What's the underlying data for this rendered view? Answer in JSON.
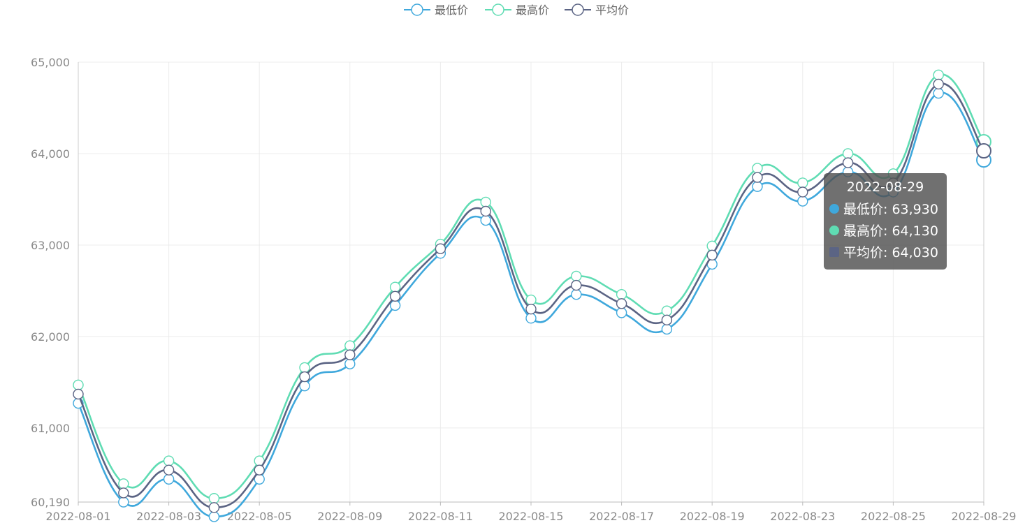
{
  "chart_data": {
    "type": "line",
    "smooth": true,
    "grid": true,
    "legend_position": "top-center",
    "x": [
      "2022-08-01",
      "2022-08-02",
      "2022-08-03",
      "2022-08-04",
      "2022-08-05",
      "2022-08-06",
      "2022-08-09",
      "2022-08-10",
      "2022-08-11",
      "2022-08-12",
      "2022-08-15",
      "2022-08-16",
      "2022-08-17",
      "2022-08-18",
      "2022-08-19",
      "2022-08-22",
      "2022-08-23",
      "2022-08-24",
      "2022-08-25",
      "2022-08-26",
      "2022-08-29"
    ],
    "x_tick_labels": [
      "2022-08-01",
      "2022-08-03",
      "2022-08-05",
      "2022-08-09",
      "2022-08-11",
      "2022-08-15",
      "2022-08-17",
      "2022-08-19",
      "2022-08-23",
      "2022-08-25",
      "2022-08-29"
    ],
    "y_tick_labels": [
      "60,190",
      "61,000",
      "62,000",
      "63,000",
      "64,000",
      "65,000"
    ],
    "y_ticks": [
      60190,
      61000,
      62000,
      63000,
      64000,
      65000
    ],
    "ylim": [
      60190,
      65000
    ],
    "series": [
      {
        "name": "最低价",
        "color": "#3fa8dc",
        "values": [
          61270,
          60190,
          60440,
          60030,
          60440,
          61460,
          61700,
          62340,
          62910,
          63270,
          62200,
          62460,
          62260,
          62080,
          62790,
          63640,
          63480,
          63800,
          63580,
          64660,
          63930
        ]
      },
      {
        "name": "最高价",
        "color": "#5fdcb3",
        "values": [
          61470,
          60390,
          60640,
          60230,
          60640,
          61660,
          61900,
          62540,
          63010,
          63470,
          62400,
          62660,
          62460,
          62280,
          62990,
          63840,
          63680,
          64000,
          63780,
          64860,
          64130
        ]
      },
      {
        "name": "平均价",
        "color": "#5b6484",
        "values": [
          61370,
          60290,
          60540,
          60130,
          60540,
          61560,
          61800,
          62440,
          62960,
          63370,
          62300,
          62560,
          62360,
          62180,
          62890,
          63740,
          63580,
          63900,
          63680,
          64760,
          64030
        ]
      }
    ]
  },
  "tooltip": {
    "title": "2022-08-29",
    "rows": [
      {
        "label": "最低价: 63,930",
        "color": "#3fa8dc",
        "shape": "circle"
      },
      {
        "label": "最高价: 64,130",
        "color": "#5fdcb3",
        "shape": "circle"
      },
      {
        "label": "平均价: 64,030",
        "color": "#5b6484",
        "shape": "square"
      }
    ]
  }
}
